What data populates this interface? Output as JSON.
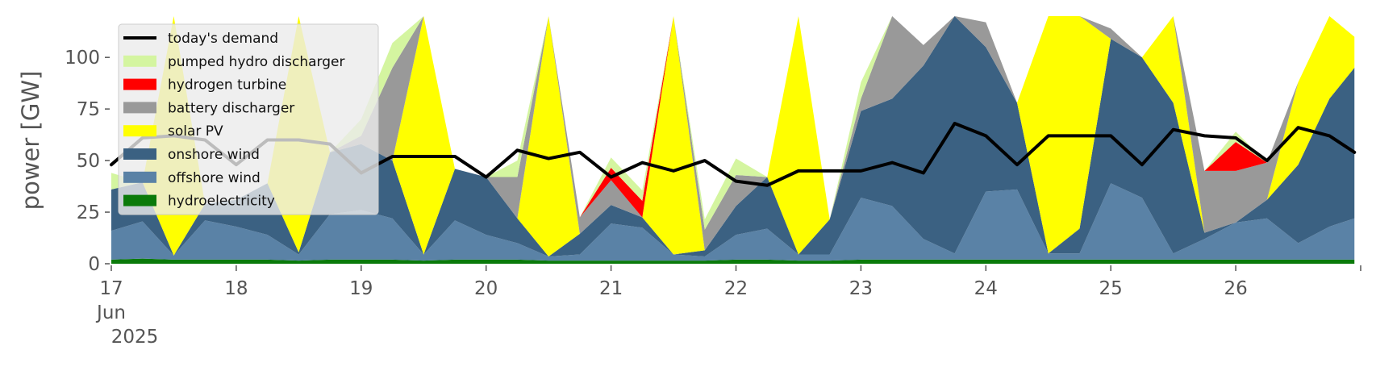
{
  "chart_data": {
    "type": "area",
    "title": "",
    "xlabel": "",
    "ylabel": "power [GW]",
    "ylim": [
      0,
      120
    ],
    "xlim": [
      17,
      27
    ],
    "grid": false,
    "legend_position": "top-left",
    "x_ticks": [
      {
        "x": 17,
        "label": "17",
        "sub": [
          "Jun",
          "2025"
        ]
      },
      {
        "x": 18,
        "label": "18"
      },
      {
        "x": 19,
        "label": "19"
      },
      {
        "x": 20,
        "label": "20"
      },
      {
        "x": 21,
        "label": "21"
      },
      {
        "x": 22,
        "label": "22"
      },
      {
        "x": 23,
        "label": "23"
      },
      {
        "x": 24,
        "label": "24"
      },
      {
        "x": 25,
        "label": "25"
      },
      {
        "x": 26,
        "label": "26"
      }
    ],
    "y_ticks": [
      0,
      25,
      50,
      75,
      100
    ],
    "legend": [
      {
        "label": "today's demand",
        "color": "#000000",
        "kind": "line"
      },
      {
        "label": "pumped hydro discharger",
        "color": "#d4f5a0",
        "kind": "patch"
      },
      {
        "label": "hydrogen turbine",
        "color": "#ff0000",
        "kind": "patch"
      },
      {
        "label": "battery discharger",
        "color": "#999999",
        "kind": "patch"
      },
      {
        "label": "solar PV",
        "color": "#ffff00",
        "kind": "patch"
      },
      {
        "label": "onshore wind",
        "color": "#3b6182",
        "kind": "patch"
      },
      {
        "label": "offshore wind",
        "color": "#5a82a6",
        "kind": "patch"
      },
      {
        "label": "hydroelectricity",
        "color": "#0a7a0a",
        "kind": "patch"
      }
    ],
    "x": [
      17.0,
      17.25,
      17.5,
      17.75,
      18.0,
      18.25,
      18.5,
      18.75,
      19.0,
      19.25,
      19.5,
      19.75,
      20.0,
      20.25,
      20.5,
      20.75,
      21.0,
      21.25,
      21.5,
      21.75,
      22.0,
      22.25,
      22.5,
      22.75,
      23.0,
      23.25,
      23.5,
      23.75,
      24.0,
      24.25,
      24.5,
      24.75,
      25.0,
      25.25,
      25.5,
      25.75,
      26.0,
      26.25,
      26.5,
      26.75,
      26.95
    ],
    "series": [
      {
        "name": "hydroelectricity",
        "color": "#0a7a0a",
        "values": [
          2,
          2.5,
          2,
          2,
          2,
          2,
          1.5,
          2,
          2,
          2,
          1.5,
          2,
          2,
          2,
          1.5,
          1.5,
          1.5,
          1.5,
          1.5,
          1.5,
          2,
          2,
          1.5,
          1.5,
          2,
          2,
          2,
          2,
          2,
          2,
          2,
          2,
          2,
          2,
          2,
          2,
          2,
          2,
          2,
          2,
          2
        ]
      },
      {
        "name": "offshore wind",
        "color": "#5a82a6",
        "values": [
          14,
          18,
          2,
          19,
          16,
          12,
          3,
          22,
          24,
          20,
          3,
          19,
          12,
          8,
          2,
          3,
          18,
          16,
          3,
          2,
          12,
          15,
          3,
          3,
          30,
          26,
          10,
          3,
          33,
          34,
          3,
          3,
          37,
          30,
          3,
          10,
          18,
          20,
          8,
          16,
          20
        ]
      },
      {
        "name": "onshore wind",
        "color": "#3b6182",
        "values": [
          20,
          19,
          0,
          8,
          13,
          25,
          1,
          30,
          32,
          28,
          0,
          25,
          28,
          12,
          0,
          10,
          9,
          5,
          0,
          3,
          14,
          25,
          0,
          17,
          42,
          52,
          84,
          115,
          70,
          42,
          0,
          12,
          70,
          68,
          73,
          3,
          0,
          9,
          38,
          62,
          73
        ]
      },
      {
        "name": "solar PV",
        "color": "#ffff00",
        "values": [
          0,
          0,
          118,
          0,
          0,
          0,
          118,
          0,
          0,
          0,
          118,
          0,
          0,
          0,
          118,
          0,
          0,
          0,
          118,
          0,
          0,
          0,
          118,
          0,
          0,
          0,
          0,
          0,
          0,
          0,
          118,
          118,
          0,
          0,
          118,
          0,
          0,
          0,
          40,
          40,
          15
        ]
      },
      {
        "name": "battery discharger",
        "color": "#999999",
        "values": [
          0,
          0,
          0,
          0,
          0,
          0,
          0,
          0,
          4,
          45,
          0,
          0,
          0,
          20,
          0,
          8,
          12,
          0,
          0,
          10,
          15,
          0,
          0,
          0,
          6,
          40,
          10,
          0,
          12,
          0,
          0,
          0,
          5,
          0,
          0,
          30,
          25,
          18,
          0,
          0,
          0
        ]
      },
      {
        "name": "hydrogen turbine",
        "color": "#ff0000",
        "values": [
          0,
          0,
          0,
          0,
          0,
          0,
          0,
          0,
          0,
          0,
          0,
          0,
          0,
          0,
          0,
          0,
          6,
          8,
          0,
          0,
          0,
          0,
          0,
          0,
          0,
          0,
          0,
          0,
          0,
          0,
          0,
          0,
          0,
          0,
          0,
          0,
          14,
          0,
          0,
          0,
          0
        ]
      },
      {
        "name": "pumped hydro discharger",
        "color": "#d4f5a0",
        "values": [
          8,
          0,
          0,
          0,
          0,
          0,
          0,
          0,
          8,
          12,
          0,
          0,
          0,
          8,
          0,
          0,
          5,
          5,
          0,
          5,
          8,
          0,
          0,
          0,
          8,
          10,
          0,
          0,
          0,
          0,
          0,
          0,
          0,
          0,
          0,
          0,
          5,
          0,
          0,
          0,
          0
        ]
      }
    ],
    "demand": {
      "name": "today's demand",
      "color": "#000000",
      "values": [
        48,
        61,
        62,
        60,
        48,
        60,
        60,
        58,
        44,
        52,
        52,
        52,
        42,
        55,
        51,
        54,
        42,
        49,
        45,
        50,
        40,
        38,
        45,
        45,
        45,
        49,
        44,
        68,
        62,
        48,
        62,
        62,
        62,
        48,
        65,
        62,
        61,
        50,
        66,
        62,
        54
      ]
    }
  }
}
